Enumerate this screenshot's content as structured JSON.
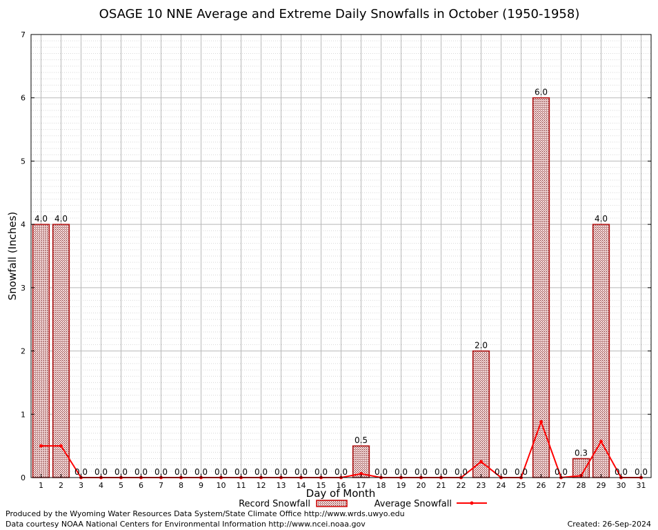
{
  "chart_data": {
    "type": "bar",
    "title": "OSAGE 10 NNE Average and Extreme Daily Snowfalls in October (1950-1958)",
    "xlabel": "Day of Month",
    "ylabel": "Snowfall (Inches)",
    "ylim": [
      0,
      7
    ],
    "yticks": [
      "0",
      "1",
      "2",
      "3",
      "4",
      "5",
      "6",
      "7"
    ],
    "categories": [
      "1",
      "2",
      "3",
      "4",
      "5",
      "6",
      "7",
      "8",
      "9",
      "10",
      "11",
      "12",
      "13",
      "14",
      "15",
      "16",
      "17",
      "18",
      "19",
      "20",
      "21",
      "22",
      "23",
      "24",
      "25",
      "26",
      "27",
      "28",
      "29",
      "30",
      "31"
    ],
    "series": [
      {
        "name": "Record Snowfall",
        "kind": "bar",
        "color": "#cc0000",
        "values": [
          4.0,
          4.0,
          0.0,
          0.0,
          0.0,
          0.0,
          0.0,
          0.0,
          0.0,
          0.0,
          0.0,
          0.0,
          0.0,
          0.0,
          0.0,
          0.0,
          0.5,
          0.0,
          0.0,
          0.0,
          0.0,
          0.0,
          2.0,
          0.0,
          0.0,
          6.0,
          0.0,
          0.3,
          4.0,
          0.0,
          0.0
        ],
        "labels": [
          "4.0",
          "4.0",
          "0.0",
          "0.0",
          "0.0",
          "0.0",
          "0.0",
          "0.0",
          "0.0",
          "0.0",
          "0.0",
          "0.0",
          "0.0",
          "0.0",
          "0.0",
          "0.0",
          "0.5",
          "0.0",
          "0.0",
          "0.0",
          "0.0",
          "0.0",
          "2.0",
          "0.0",
          "0.0",
          "6.0",
          "0.0",
          "0.3",
          "4.0",
          "0.0",
          "0.0"
        ]
      },
      {
        "name": "Average Snowfall",
        "kind": "line",
        "color": "#ff0000",
        "values": [
          0.5,
          0.5,
          0.0,
          0.0,
          0.0,
          0.0,
          0.0,
          0.0,
          0.0,
          0.0,
          0.0,
          0.0,
          0.0,
          0.0,
          0.0,
          0.0,
          0.06,
          0.0,
          0.0,
          0.0,
          0.0,
          0.0,
          0.25,
          0.0,
          0.0,
          0.88,
          0.0,
          0.03,
          0.57,
          0.0,
          0.0
        ]
      }
    ],
    "grid": true,
    "legend_position": "bottom"
  },
  "footer": {
    "credit_line1": "Produced by the Wyoming Water Resources Data System/State Climate Office http://www.wrds.uwyo.edu",
    "credit_line2": "Data courtesy NOAA National Centers for Environmental Information http://www.ncei.noaa.gov",
    "created": "Created:  26-Sep-2024"
  }
}
